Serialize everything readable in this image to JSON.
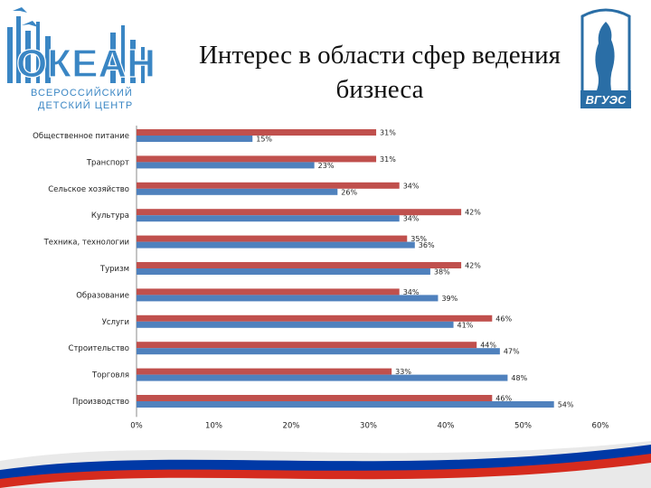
{
  "title": {
    "line1": "Интерес в области сфер ведения",
    "line2": "бизнеса"
  },
  "logo_left": {
    "main": "ОКЕАН",
    "sub1": "ВСЕРОССИЙСКИЙ",
    "sub2": "ДЕТСКИЙ ЦЕНТР"
  },
  "logo_right": {
    "text": "ВГУЭС"
  },
  "colors": {
    "red": "#c0504d",
    "blue": "#4f81bd",
    "logo_blue": "#3a86c4",
    "flag_red": "#d52b1e",
    "flag_blue": "#0039a6"
  },
  "chart_data": {
    "type": "bar",
    "orientation": "horizontal",
    "categories": [
      "Общественное питание",
      "Транспорт",
      "Сельское хозяйство",
      "Культура",
      "Техника, технологии",
      "Туризм",
      "Образование",
      "Услуги",
      "Строительство",
      "Торговля",
      "Производство"
    ],
    "series": [
      {
        "color": "#c0504d",
        "values": [
          31,
          31,
          34,
          42,
          35,
          42,
          34,
          46,
          44,
          33,
          46
        ],
        "labels": [
          "31%",
          "31%",
          "34%",
          "42%",
          "35%",
          "42%",
          "34%",
          "46%",
          "44%",
          "33%",
          "46%"
        ]
      },
      {
        "color": "#4f81bd",
        "values": [
          15,
          23,
          26,
          34,
          36,
          38,
          39,
          41,
          47,
          48,
          54
        ],
        "labels": [
          "15%",
          "23%",
          "26%",
          "34%",
          "36%",
          "38%",
          "39%",
          "41%",
          "47%",
          "48%",
          "54%"
        ]
      }
    ],
    "xlim": [
      0,
      60
    ],
    "xticks": [
      "0%",
      "10%",
      "20%",
      "30%",
      "40%",
      "50%",
      "60%"
    ],
    "grid": false,
    "legend": "none"
  }
}
